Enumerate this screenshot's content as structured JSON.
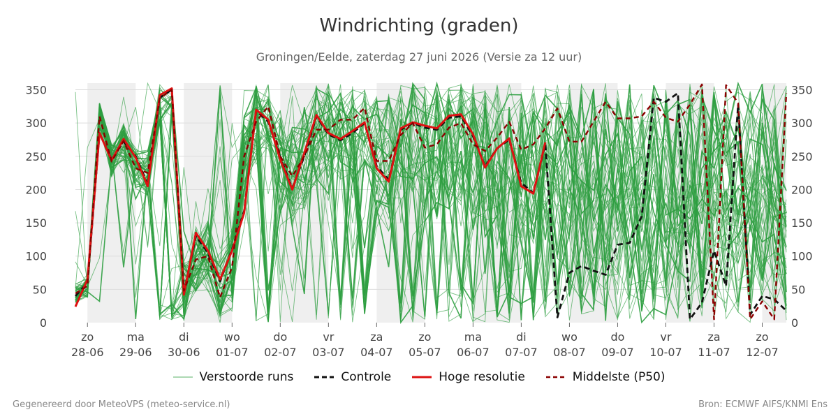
{
  "header": {
    "title": "Windrichting (graden)",
    "subtitle": "Groningen/Eelde, zaterdag 27 juni 2026 (Versie za 12 uur)"
  },
  "footer": {
    "left": "Gegenereerd door MeteoVPS (meteo-service.nl)",
    "right": "Bron: ECMWF AIFS/KNMI Ens"
  },
  "colors": {
    "ensemble": "#2e9e40",
    "control": "#111111",
    "high_res": "#dd1111",
    "median": "#8b0000",
    "night_band": "#efefef",
    "grid": "#dddddd"
  },
  "legend": [
    {
      "label": "Verstoorde runs",
      "key": "ensemble"
    },
    {
      "label": "Controle",
      "key": "control"
    },
    {
      "label": "Hoge resolutie",
      "key": "high_res"
    },
    {
      "label": "Middelste (P50)",
      "key": "median"
    }
  ],
  "chart_data": {
    "type": "line",
    "title": "Windrichting (graden)",
    "ylim": [
      0,
      360
    ],
    "yticks": [
      0,
      50,
      100,
      150,
      200,
      250,
      300,
      350
    ],
    "xlim": [
      -0.25,
      14.5
    ],
    "grid": true,
    "legend_position": "bottom",
    "right_axis": true,
    "x_ticks": [
      {
        "pos": 0,
        "day": "zo",
        "date": "28-06"
      },
      {
        "pos": 1,
        "day": "ma",
        "date": "29-06"
      },
      {
        "pos": 2,
        "day": "di",
        "date": "30-06"
      },
      {
        "pos": 3,
        "day": "wo",
        "date": "01-07"
      },
      {
        "pos": 4,
        "day": "do",
        "date": "02-07"
      },
      {
        "pos": 5,
        "day": "vr",
        "date": "03-07"
      },
      {
        "pos": 6,
        "day": "za",
        "date": "04-07"
      },
      {
        "pos": 7,
        "day": "zo",
        "date": "05-07"
      },
      {
        "pos": 8,
        "day": "ma",
        "date": "06-07"
      },
      {
        "pos": 9,
        "day": "di",
        "date": "07-07"
      },
      {
        "pos": 10,
        "day": "wo",
        "date": "08-07"
      },
      {
        "pos": 11,
        "day": "do",
        "date": "09-07"
      },
      {
        "pos": 12,
        "day": "vr",
        "date": "10-07"
      },
      {
        "pos": 13,
        "day": "za",
        "date": "11-07"
      },
      {
        "pos": 14,
        "day": "zo",
        "date": "12-07"
      }
    ],
    "shaded_bands": [
      [
        0,
        1
      ],
      [
        2,
        3
      ],
      [
        4,
        5
      ],
      [
        6,
        7
      ],
      [
        8,
        9
      ],
      [
        10,
        11
      ],
      [
        12,
        13
      ],
      [
        14,
        14.5
      ]
    ],
    "high_res": {
      "name": "Hoge resolutie",
      "x": [
        -0.25,
        0,
        0.25,
        0.5,
        0.75,
        1,
        1.25,
        1.5,
        1.75,
        2,
        2.25,
        2.5,
        2.75,
        3,
        3.25,
        3.5,
        3.75,
        4,
        4.25,
        4.5,
        4.75,
        5,
        5.25,
        5.5,
        5.75,
        6,
        6.25,
        6.5,
        6.75,
        7,
        7.25,
        7.5,
        7.75,
        8,
        8.25,
        8.5,
        8.75,
        9,
        9.25,
        9.5
      ],
      "y": [
        24,
        65,
        285,
        244,
        276,
        248,
        205,
        342,
        352,
        42,
        135,
        108,
        65,
        108,
        165,
        320,
        305,
        245,
        200,
        255,
        312,
        285,
        276,
        288,
        301,
        232,
        212,
        292,
        301,
        296,
        292,
        311,
        313,
        283,
        233,
        262,
        277,
        205,
        194,
        271
      ]
    },
    "control": {
      "name": "Controle",
      "x": [
        -0.25,
        0,
        0.25,
        0.5,
        0.75,
        1,
        1.25,
        1.5,
        1.75,
        2,
        2.25,
        2.5,
        2.75,
        3,
        3.25,
        3.5,
        3.75,
        4,
        4.25,
        4.5,
        4.75,
        5,
        5.25,
        5.5,
        5.75,
        6,
        6.25,
        6.5,
        6.75,
        7,
        7.25,
        7.5,
        7.75,
        8,
        8.25,
        8.5,
        8.75,
        9,
        9.25,
        9.5,
        9.75,
        10,
        10.25,
        10.5,
        10.75,
        11,
        11.25,
        11.5,
        11.75,
        12,
        12.25,
        12.5,
        12.75,
        13,
        13.25,
        13.5,
        13.75,
        14,
        14.25,
        14.5
      ],
      "y": [
        40,
        60,
        285,
        245,
        272,
        250,
        208,
        338,
        350,
        45,
        130,
        105,
        62,
        110,
        168,
        318,
        302,
        248,
        202,
        250,
        310,
        283,
        274,
        285,
        300,
        235,
        215,
        290,
        300,
        293,
        290,
        308,
        310,
        280,
        235,
        262,
        275,
        210,
        195,
        268,
        8,
        75,
        85,
        78,
        72,
        117,
        120,
        160,
        338,
        332,
        345,
        5,
        30,
        108,
        55,
        328,
        12,
        40,
        35,
        18
      ]
    },
    "median": {
      "name": "Middelste (P50)",
      "x": [
        -0.25,
        0,
        0.25,
        0.5,
        0.75,
        1,
        1.25,
        1.5,
        1.75,
        2,
        2.25,
        2.5,
        2.75,
        3,
        3.25,
        3.5,
        3.75,
        4,
        4.25,
        4.5,
        4.75,
        5,
        5.25,
        5.5,
        5.75,
        6,
        6.25,
        6.5,
        6.75,
        7,
        7.25,
        7.5,
        7.75,
        8,
        8.25,
        8.5,
        8.75,
        9,
        9.25,
        9.5,
        9.75,
        10,
        10.25,
        10.5,
        10.75,
        11,
        11.25,
        11.5,
        11.75,
        12,
        12.25,
        12.5,
        12.75,
        13,
        13.25,
        13.5,
        13.75,
        14,
        14.25,
        14.5
      ],
      "y": [
        44,
        55,
        310,
        242,
        273,
        232,
        225,
        337,
        350,
        48,
        95,
        100,
        38,
        83,
        250,
        302,
        325,
        250,
        220,
        250,
        290,
        290,
        305,
        305,
        323,
        243,
        243,
        282,
        300,
        263,
        268,
        293,
        300,
        268,
        258,
        278,
        302,
        260,
        268,
        292,
        322,
        272,
        272,
        302,
        332,
        307,
        307,
        310,
        332,
        308,
        302,
        328,
        358,
        5,
        357,
        330,
        5,
        32,
        5,
        345
      ]
    },
    "ensemble_members": 50
  }
}
